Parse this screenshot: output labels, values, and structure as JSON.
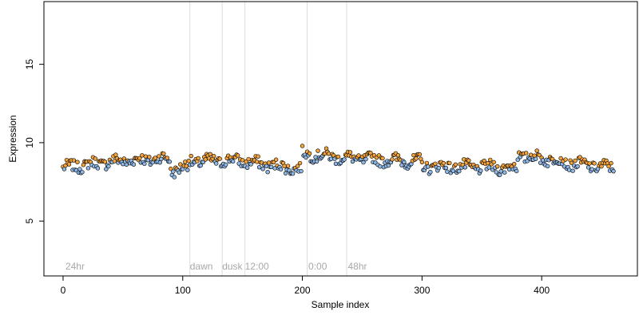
{
  "chart_data": {
    "type": "scatter",
    "title": "",
    "xlabel": "Sample index",
    "ylabel": "Expression",
    "xlim": [
      -16,
      480
    ],
    "ylim": [
      1.5,
      19
    ],
    "x_ticks": [
      0,
      100,
      200,
      300,
      400
    ],
    "y_ticks": [
      5,
      10,
      15
    ],
    "grid": false,
    "colors": {
      "point_fill_high": "#f2a33c",
      "point_fill_low": "#8fb8e6",
      "point_stroke": "#000000",
      "band": "#dcdcdc",
      "annotation": "#a8a8a8"
    },
    "annotations": [
      {
        "x": 2,
        "label": "24hr"
      },
      {
        "x": 106,
        "label": "dawn"
      },
      {
        "x": 133,
        "label": "dusk"
      },
      {
        "x": 152,
        "label": "12:00"
      },
      {
        "x": 205,
        "label": "0:00"
      },
      {
        "x": 238,
        "label": "48hr"
      }
    ],
    "vlines": [
      106,
      133,
      152,
      204,
      237
    ],
    "series": [
      {
        "point_count": 461,
        "x": [
          0,
          460
        ],
        "y_segments": [
          {
            "from": 0,
            "to": 40,
            "start": 8.4,
            "end": 8.8
          },
          {
            "from": 40,
            "to": 90,
            "start": 8.8,
            "end": 9.0
          },
          {
            "from": 90,
            "to": 105,
            "start": 8.2,
            "end": 8.5
          },
          {
            "from": 105,
            "to": 150,
            "start": 8.8,
            "end": 8.9
          },
          {
            "from": 150,
            "to": 200,
            "start": 8.8,
            "end": 8.3
          },
          {
            "from": 200,
            "to": 240,
            "start": 9.3,
            "end": 9.0
          },
          {
            "from": 240,
            "to": 300,
            "start": 9.0,
            "end": 8.8
          },
          {
            "from": 300,
            "to": 380,
            "start": 8.5,
            "end": 8.4
          },
          {
            "from": 380,
            "to": 420,
            "start": 9.2,
            "end": 8.8
          },
          {
            "from": 420,
            "to": 461,
            "start": 8.7,
            "end": 8.4
          }
        ]
      }
    ]
  }
}
